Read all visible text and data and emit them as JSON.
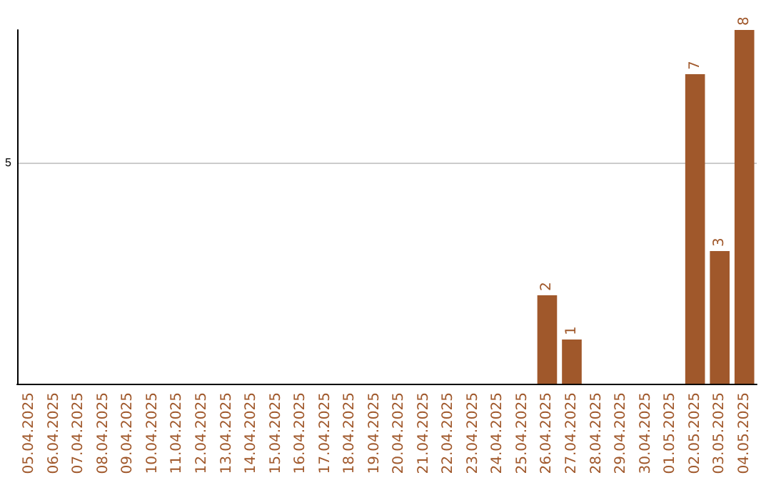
{
  "chart_data": {
    "type": "bar",
    "categories": [
      "05.04.2025",
      "06.04.2025",
      "07.04.2025",
      "08.04.2025",
      "09.04.2025",
      "10.04.2025",
      "11.04.2025",
      "12.04.2025",
      "13.04.2025",
      "14.04.2025",
      "15.04.2025",
      "16.04.2025",
      "17.04.2025",
      "18.04.2025",
      "19.04.2025",
      "20.04.2025",
      "21.04.2025",
      "22.04.2025",
      "23.04.2025",
      "24.04.2025",
      "25.04.2025",
      "26.04.2025",
      "27.04.2025",
      "28.04.2025",
      "29.04.2025",
      "30.04.2025",
      "01.05.2025",
      "02.05.2025",
      "03.05.2025",
      "04.05.2025"
    ],
    "values": [
      null,
      null,
      null,
      null,
      null,
      null,
      null,
      null,
      null,
      null,
      null,
      null,
      null,
      null,
      null,
      null,
      null,
      null,
      null,
      null,
      null,
      2,
      1,
      null,
      null,
      null,
      null,
      7,
      3,
      8
    ],
    "data_labels": true,
    "color": "#a0582b",
    "ylim": [
      0,
      8
    ],
    "yticks": [
      5
    ],
    "grid": "y"
  }
}
